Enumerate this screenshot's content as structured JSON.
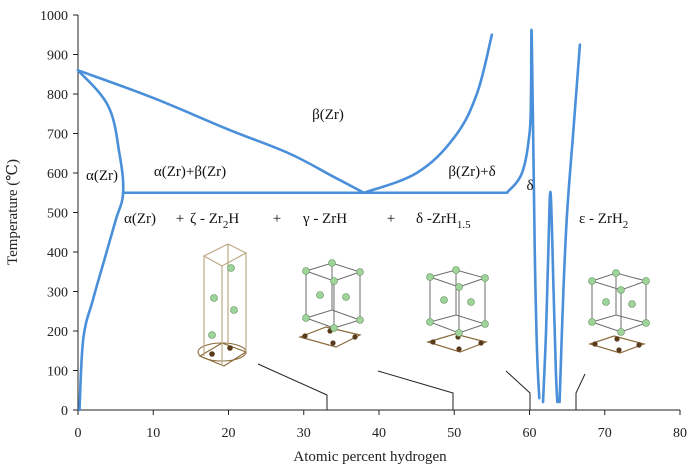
{
  "chart_data": {
    "type": "phase-diagram",
    "xlabel": "Atomic percent hydrogen",
    "ylabel": "Temperature (℃)",
    "xlim": [
      0,
      80
    ],
    "ylim": [
      0,
      1000
    ],
    "x_ticks": [
      "0",
      "10",
      "20",
      "30",
      "40",
      "50",
      "60",
      "70",
      "80"
    ],
    "y_ticks": [
      "0",
      "100",
      "200",
      "300",
      "400",
      "500",
      "600",
      "700",
      "800",
      "900",
      "1000"
    ],
    "region_labels": {
      "beta": "β(Zr)",
      "alpha": "α(Zr)",
      "alpha_beta": "α(Zr)+β(Zr)",
      "beta_delta": "β(Zr)+δ",
      "delta": "δ",
      "alpha_low": "α(Zr)",
      "plus": "+",
      "zeta_prefix": "ζ - Zr",
      "zeta_sub": "2",
      "zeta_suffix": "H",
      "gamma": "γ - ZrH",
      "delta_prefix": "δ -ZrH",
      "delta_sub": "1.5",
      "epsilon_prefix": "ε - ZrH",
      "epsilon_sub": "2"
    },
    "boundaries": {
      "alpha_solvus": [
        [
          0,
          860
        ],
        [
          4,
          770
        ],
        [
          5.5,
          650
        ],
        [
          6,
          550
        ],
        [
          5,
          480
        ],
        [
          3.5,
          380
        ],
        [
          2,
          280
        ],
        [
          0.7,
          180
        ],
        [
          0.2,
          0
        ]
      ],
      "beta_transus_left": [
        [
          0,
          860
        ],
        [
          10,
          790
        ],
        [
          20,
          710
        ],
        [
          28,
          650
        ],
        [
          34,
          590
        ],
        [
          38,
          550
        ]
      ],
      "beta_transus_right": [
        [
          38,
          550
        ],
        [
          45,
          600
        ],
        [
          50,
          690
        ],
        [
          53,
          800
        ],
        [
          55,
          950
        ]
      ],
      "eutectoid": [
        [
          6,
          550
        ],
        [
          57,
          550
        ]
      ],
      "delta_left": [
        [
          57,
          550
        ],
        [
          59,
          600
        ],
        [
          60,
          700
        ],
        [
          60.2,
          800
        ],
        [
          60.3,
          945
        ],
        [
          60.7,
          400
        ],
        [
          61,
          150
        ],
        [
          61.3,
          30
        ]
      ],
      "delta_right": [
        [
          61.8,
          20
        ],
        [
          62.2,
          200
        ],
        [
          62.5,
          400
        ],
        [
          62.8,
          550
        ],
        [
          63.2,
          300
        ],
        [
          63.5,
          100
        ],
        [
          63.7,
          20
        ]
      ],
      "epsilon_left": [
        [
          64,
          20
        ],
        [
          64.5,
          300
        ],
        [
          65,
          500
        ],
        [
          65.8,
          700
        ],
        [
          66.4,
          850
        ],
        [
          66.7,
          925
        ]
      ]
    }
  }
}
